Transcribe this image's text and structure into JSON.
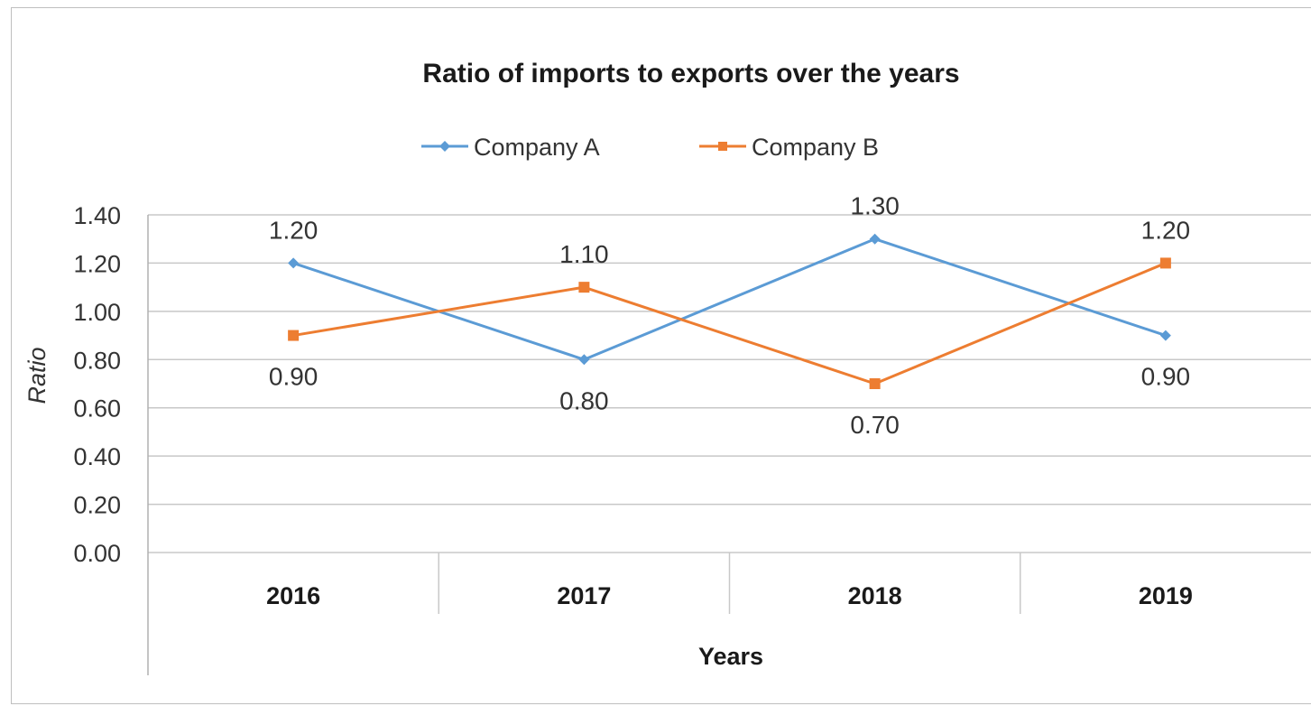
{
  "chart_data": {
    "type": "line",
    "title": "Ratio of imports to exports over the years",
    "xlabel": "Years",
    "ylabel": "Ratio",
    "categories": [
      "2016",
      "2017",
      "2018",
      "2019"
    ],
    "ylim": [
      0,
      1.4
    ],
    "yticks": [
      "0.00",
      "0.20",
      "0.40",
      "0.60",
      "0.80",
      "1.00",
      "1.20",
      "1.40"
    ],
    "ytick_values": [
      0,
      0.2,
      0.4,
      0.6,
      0.8,
      1.0,
      1.2,
      1.4
    ],
    "grid": true,
    "legend_position": "top",
    "series": [
      {
        "name": "Company A",
        "color": "#5b9bd5",
        "marker": "diamond",
        "values": [
          1.2,
          0.8,
          1.3,
          0.9
        ],
        "labels": [
          "1.20",
          "0.80",
          "1.30",
          "0.90"
        ],
        "label_positions": [
          "above",
          "below",
          "above",
          "below"
        ]
      },
      {
        "name": "Company B",
        "color": "#ed7d31",
        "marker": "square",
        "values": [
          0.9,
          1.1,
          0.7,
          1.2
        ],
        "labels": [
          "0.90",
          "1.10",
          "0.70",
          "1.20"
        ],
        "label_positions": [
          "below",
          "above",
          "below",
          "above"
        ]
      }
    ]
  }
}
